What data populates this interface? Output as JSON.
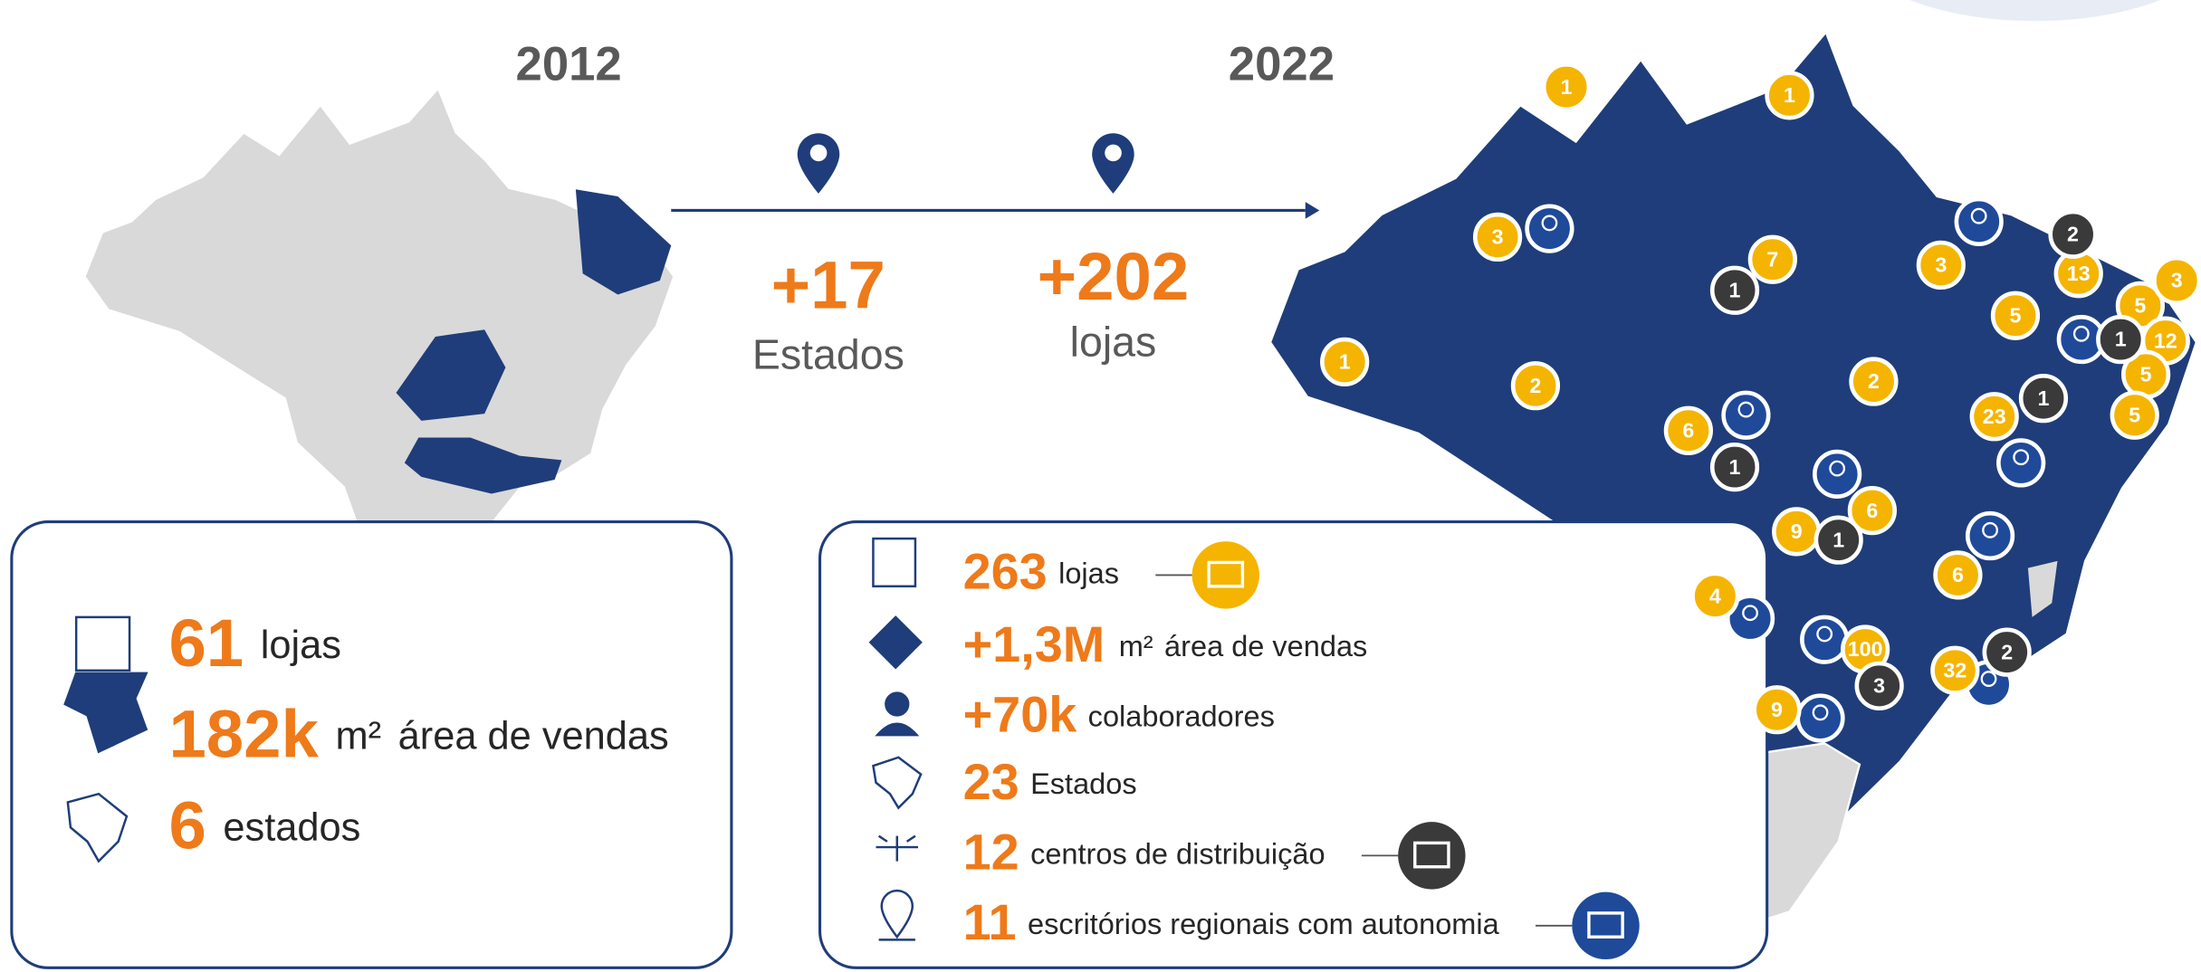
{
  "year_before": "2012",
  "year_after": "2022",
  "growth": [
    {
      "value": "+17",
      "label": "Estados"
    },
    {
      "value": "+202",
      "label": "lojas"
    }
  ],
  "before": [
    {
      "value": "61",
      "label": "lojas"
    },
    {
      "value": "182k",
      "unit": "m²",
      "label": "área de vendas"
    },
    {
      "value": "6",
      "label": "estados"
    }
  ],
  "after": [
    {
      "value": "263",
      "label": "lojas"
    },
    {
      "value": "+1,3M",
      "unit": "m²",
      "label": "área de vendas"
    },
    {
      "value": "+70k",
      "label": "colaboradores"
    },
    {
      "value": "23",
      "label": "Estados"
    },
    {
      "value": "12",
      "label": "centros de distribuição"
    },
    {
      "value": "11",
      "label": "escritórios regionais com autonomia"
    }
  ],
  "markers": [
    {
      "label": "1",
      "color": "#f5b400"
    },
    {
      "label": "1",
      "color": "#f5b400"
    },
    {
      "label": "3",
      "color": "#f5b400"
    },
    {
      "label": "7",
      "color": "#f5b400"
    },
    {
      "label": "1",
      "color": "#f5b400"
    },
    {
      "label": "2",
      "color": "#f5b400"
    },
    {
      "label": "6",
      "color": "#f5b400"
    },
    {
      "label": "2",
      "color": "#f5b400"
    },
    {
      "label": "3",
      "color": "#f5b400"
    },
    {
      "label": "5",
      "color": "#f5b400"
    },
    {
      "label": "13",
      "color": "#f5b400"
    },
    {
      "label": "5",
      "color": "#f5b400"
    },
    {
      "label": "3",
      "color": "#f5b400"
    },
    {
      "label": "12",
      "color": "#f5b400"
    },
    {
      "label": "5",
      "color": "#f5b400"
    },
    {
      "label": "5",
      "color": "#f5b400"
    },
    {
      "label": "23",
      "color": "#f5b400"
    },
    {
      "label": "6",
      "color": "#f5b400"
    },
    {
      "label": "9",
      "color": "#f5b400"
    },
    {
      "label": "4",
      "color": "#f5b400"
    },
    {
      "label": "6",
      "color": "#f5b400"
    },
    {
      "label": "100",
      "color": "#f5b400"
    },
    {
      "label": "32",
      "color": "#f5b400"
    },
    {
      "label": "9",
      "color": "#f5b400"
    },
    {
      "label": "1",
      "color": "#3a3a3a"
    },
    {
      "label": "2",
      "color": "#3a3a3a"
    },
    {
      "label": "1",
      "color": "#3a3a3a"
    },
    {
      "label": "1",
      "color": "#3a3a3a"
    },
    {
      "label": "1",
      "color": "#3a3a3a"
    },
    {
      "label": "1",
      "color": "#3a3a3a"
    },
    {
      "label": "3",
      "color": "#3a3a3a"
    },
    {
      "label": "2",
      "color": "#3a3a3a"
    }
  ]
}
